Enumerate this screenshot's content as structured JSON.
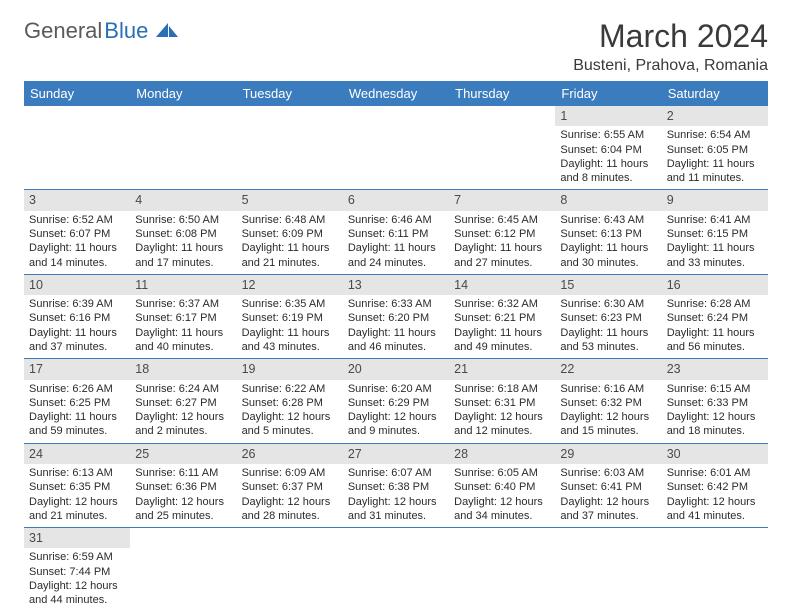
{
  "logo": {
    "part1": "General",
    "part2": "Blue"
  },
  "title": "March 2024",
  "location": "Busteni, Prahova, Romania",
  "colors": {
    "header_bg": "#3b7cbf",
    "header_fg": "#ffffff",
    "daynum_bg": "#e5e5e5",
    "border": "#3b7cbf",
    "logo_gray": "#5a5a5a",
    "logo_blue": "#2a6fb5"
  },
  "weekdays": [
    "Sunday",
    "Monday",
    "Tuesday",
    "Wednesday",
    "Thursday",
    "Friday",
    "Saturday"
  ],
  "weeks": [
    [
      null,
      null,
      null,
      null,
      null,
      {
        "n": "1",
        "sr": "Sunrise: 6:55 AM",
        "ss": "Sunset: 6:04 PM",
        "d1": "Daylight: 11 hours",
        "d2": "and 8 minutes."
      },
      {
        "n": "2",
        "sr": "Sunrise: 6:54 AM",
        "ss": "Sunset: 6:05 PM",
        "d1": "Daylight: 11 hours",
        "d2": "and 11 minutes."
      }
    ],
    [
      {
        "n": "3",
        "sr": "Sunrise: 6:52 AM",
        "ss": "Sunset: 6:07 PM",
        "d1": "Daylight: 11 hours",
        "d2": "and 14 minutes."
      },
      {
        "n": "4",
        "sr": "Sunrise: 6:50 AM",
        "ss": "Sunset: 6:08 PM",
        "d1": "Daylight: 11 hours",
        "d2": "and 17 minutes."
      },
      {
        "n": "5",
        "sr": "Sunrise: 6:48 AM",
        "ss": "Sunset: 6:09 PM",
        "d1": "Daylight: 11 hours",
        "d2": "and 21 minutes."
      },
      {
        "n": "6",
        "sr": "Sunrise: 6:46 AM",
        "ss": "Sunset: 6:11 PM",
        "d1": "Daylight: 11 hours",
        "d2": "and 24 minutes."
      },
      {
        "n": "7",
        "sr": "Sunrise: 6:45 AM",
        "ss": "Sunset: 6:12 PM",
        "d1": "Daylight: 11 hours",
        "d2": "and 27 minutes."
      },
      {
        "n": "8",
        "sr": "Sunrise: 6:43 AM",
        "ss": "Sunset: 6:13 PM",
        "d1": "Daylight: 11 hours",
        "d2": "and 30 minutes."
      },
      {
        "n": "9",
        "sr": "Sunrise: 6:41 AM",
        "ss": "Sunset: 6:15 PM",
        "d1": "Daylight: 11 hours",
        "d2": "and 33 minutes."
      }
    ],
    [
      {
        "n": "10",
        "sr": "Sunrise: 6:39 AM",
        "ss": "Sunset: 6:16 PM",
        "d1": "Daylight: 11 hours",
        "d2": "and 37 minutes."
      },
      {
        "n": "11",
        "sr": "Sunrise: 6:37 AM",
        "ss": "Sunset: 6:17 PM",
        "d1": "Daylight: 11 hours",
        "d2": "and 40 minutes."
      },
      {
        "n": "12",
        "sr": "Sunrise: 6:35 AM",
        "ss": "Sunset: 6:19 PM",
        "d1": "Daylight: 11 hours",
        "d2": "and 43 minutes."
      },
      {
        "n": "13",
        "sr": "Sunrise: 6:33 AM",
        "ss": "Sunset: 6:20 PM",
        "d1": "Daylight: 11 hours",
        "d2": "and 46 minutes."
      },
      {
        "n": "14",
        "sr": "Sunrise: 6:32 AM",
        "ss": "Sunset: 6:21 PM",
        "d1": "Daylight: 11 hours",
        "d2": "and 49 minutes."
      },
      {
        "n": "15",
        "sr": "Sunrise: 6:30 AM",
        "ss": "Sunset: 6:23 PM",
        "d1": "Daylight: 11 hours",
        "d2": "and 53 minutes."
      },
      {
        "n": "16",
        "sr": "Sunrise: 6:28 AM",
        "ss": "Sunset: 6:24 PM",
        "d1": "Daylight: 11 hours",
        "d2": "and 56 minutes."
      }
    ],
    [
      {
        "n": "17",
        "sr": "Sunrise: 6:26 AM",
        "ss": "Sunset: 6:25 PM",
        "d1": "Daylight: 11 hours",
        "d2": "and 59 minutes."
      },
      {
        "n": "18",
        "sr": "Sunrise: 6:24 AM",
        "ss": "Sunset: 6:27 PM",
        "d1": "Daylight: 12 hours",
        "d2": "and 2 minutes."
      },
      {
        "n": "19",
        "sr": "Sunrise: 6:22 AM",
        "ss": "Sunset: 6:28 PM",
        "d1": "Daylight: 12 hours",
        "d2": "and 5 minutes."
      },
      {
        "n": "20",
        "sr": "Sunrise: 6:20 AM",
        "ss": "Sunset: 6:29 PM",
        "d1": "Daylight: 12 hours",
        "d2": "and 9 minutes."
      },
      {
        "n": "21",
        "sr": "Sunrise: 6:18 AM",
        "ss": "Sunset: 6:31 PM",
        "d1": "Daylight: 12 hours",
        "d2": "and 12 minutes."
      },
      {
        "n": "22",
        "sr": "Sunrise: 6:16 AM",
        "ss": "Sunset: 6:32 PM",
        "d1": "Daylight: 12 hours",
        "d2": "and 15 minutes."
      },
      {
        "n": "23",
        "sr": "Sunrise: 6:15 AM",
        "ss": "Sunset: 6:33 PM",
        "d1": "Daylight: 12 hours",
        "d2": "and 18 minutes."
      }
    ],
    [
      {
        "n": "24",
        "sr": "Sunrise: 6:13 AM",
        "ss": "Sunset: 6:35 PM",
        "d1": "Daylight: 12 hours",
        "d2": "and 21 minutes."
      },
      {
        "n": "25",
        "sr": "Sunrise: 6:11 AM",
        "ss": "Sunset: 6:36 PM",
        "d1": "Daylight: 12 hours",
        "d2": "and 25 minutes."
      },
      {
        "n": "26",
        "sr": "Sunrise: 6:09 AM",
        "ss": "Sunset: 6:37 PM",
        "d1": "Daylight: 12 hours",
        "d2": "and 28 minutes."
      },
      {
        "n": "27",
        "sr": "Sunrise: 6:07 AM",
        "ss": "Sunset: 6:38 PM",
        "d1": "Daylight: 12 hours",
        "d2": "and 31 minutes."
      },
      {
        "n": "28",
        "sr": "Sunrise: 6:05 AM",
        "ss": "Sunset: 6:40 PM",
        "d1": "Daylight: 12 hours",
        "d2": "and 34 minutes."
      },
      {
        "n": "29",
        "sr": "Sunrise: 6:03 AM",
        "ss": "Sunset: 6:41 PM",
        "d1": "Daylight: 12 hours",
        "d2": "and 37 minutes."
      },
      {
        "n": "30",
        "sr": "Sunrise: 6:01 AM",
        "ss": "Sunset: 6:42 PM",
        "d1": "Daylight: 12 hours",
        "d2": "and 41 minutes."
      }
    ],
    [
      {
        "n": "31",
        "sr": "Sunrise: 6:59 AM",
        "ss": "Sunset: 7:44 PM",
        "d1": "Daylight: 12 hours",
        "d2": "and 44 minutes."
      },
      null,
      null,
      null,
      null,
      null,
      null
    ]
  ]
}
